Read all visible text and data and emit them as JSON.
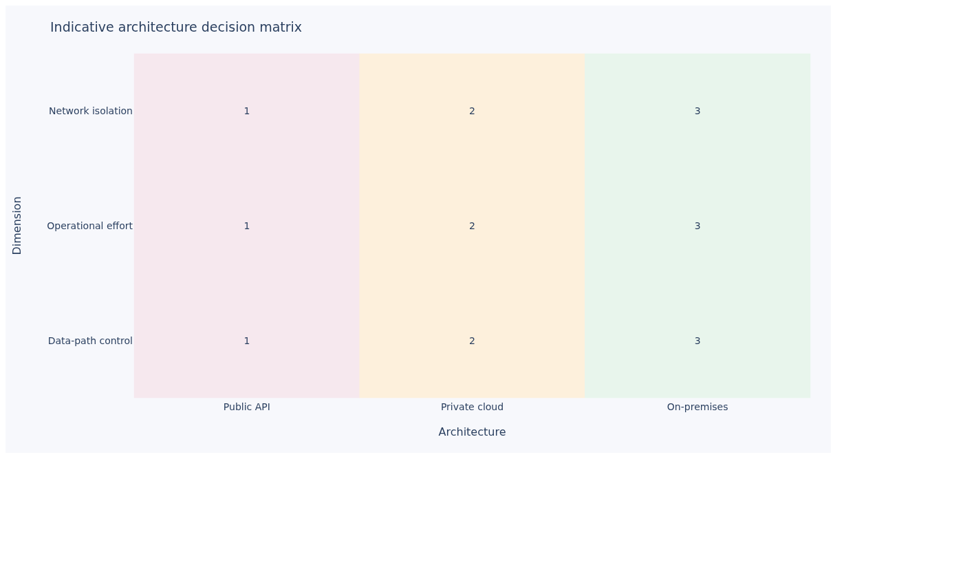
{
  "chart_data": {
    "type": "heatmap",
    "title": "Indicative architecture decision matrix",
    "xlabel": "Architecture",
    "ylabel": "Dimension",
    "categories": [
      "Public API",
      "Private cloud",
      "On-premises"
    ],
    "y_categories": [
      "Network isolation",
      "Operational effort",
      "Data-path control"
    ],
    "cells": [
      [
        1,
        2,
        3
      ],
      [
        1,
        2,
        3
      ],
      [
        1,
        2,
        3
      ]
    ],
    "colors": [
      [
        "#f6e8ee",
        "#fdf0dc",
        "#e8f5ec"
      ],
      [
        "#f6e8ee",
        "#fdf0dc",
        "#e8f5ec"
      ],
      [
        "#f6e8ee",
        "#fdf0dc",
        "#e8f5ec"
      ]
    ],
    "data_labels": true
  }
}
